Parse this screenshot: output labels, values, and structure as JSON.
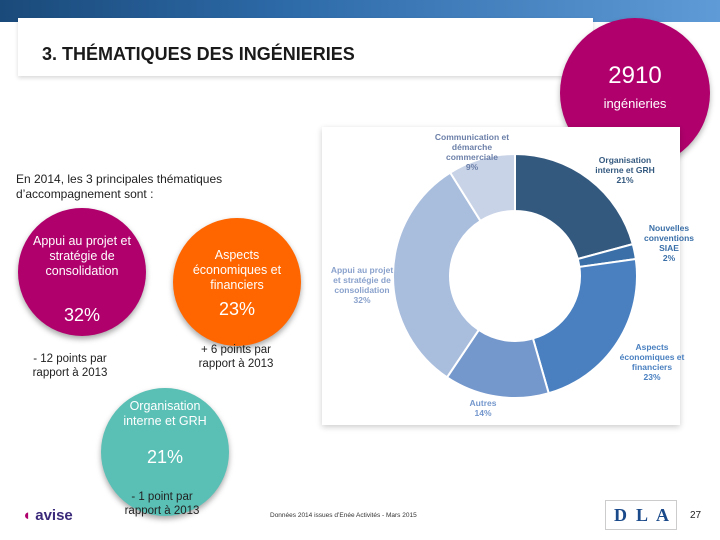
{
  "header": {
    "title": "3. THÉMATIQUES DES INGÉNIERIES",
    "count": "2910",
    "count_label": "ingénieries"
  },
  "intro": "En 2014, les 3 principales thématiques d’accompagnement sont :",
  "top3": [
    {
      "label": "Appui au projet et stratégie de consolidation",
      "pct": "32%",
      "note": "- 12 points par rapport à 2013",
      "color": "#b0006c"
    },
    {
      "label": "Aspects économiques et financiers",
      "pct": "23%",
      "note": "+ 6 points par rapport à 2013",
      "color": "#ff6600"
    },
    {
      "label": "Organisation interne et GRH",
      "pct": "21%",
      "note": "- 1 point par rapport à 2013",
      "color": "#5abfb5"
    }
  ],
  "chart_data": {
    "type": "pie",
    "title": "",
    "slices": [
      {
        "label": "Organisation interne et GRH",
        "pct_label": "21%",
        "value": 21,
        "color": "#34597f"
      },
      {
        "label": "Nouvelles conventions SIAE",
        "pct_label": "2%",
        "value": 2,
        "color": "#3a6fa8"
      },
      {
        "label": "Aspects économiques et financiers",
        "pct_label": "23%",
        "value": 23,
        "color": "#4a80c0"
      },
      {
        "label": "Autres",
        "pct_label": "14%",
        "value": 14,
        "color": "#7497cc"
      },
      {
        "label": "Appui au projet et stratégie de consolidation",
        "pct_label": "32%",
        "value": 32,
        "color": "#a9bddd"
      },
      {
        "label": "Communication et démarche commerciale",
        "pct_label": "9%",
        "value": 9,
        "color": "#c8d3e7"
      }
    ]
  },
  "footer": {
    "source": "Données 2014 issues d’Enée Activités - Mars 2015",
    "page": "27",
    "brand": "avise",
    "dla": [
      "D",
      "L",
      "A"
    ]
  }
}
